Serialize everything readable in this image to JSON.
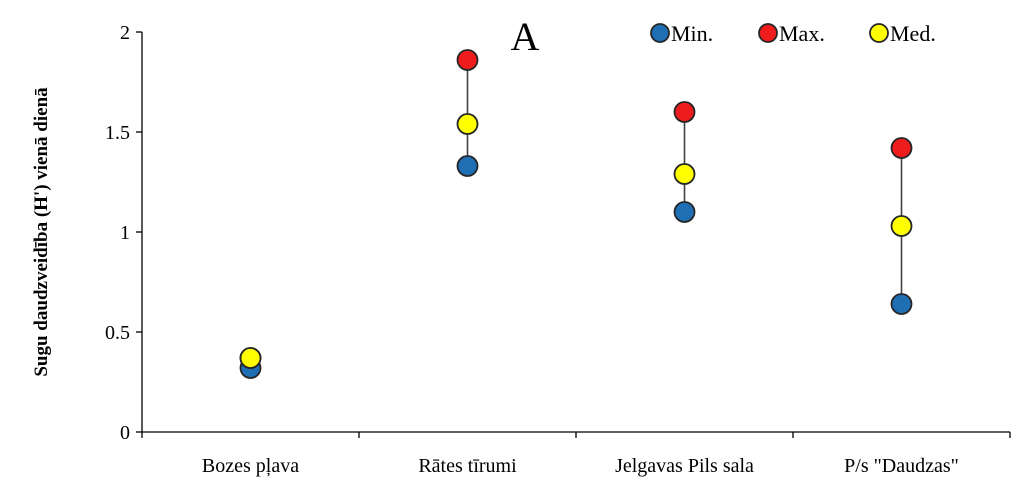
{
  "chart_data": {
    "type": "scatter",
    "panel_label": "A",
    "ylabel": "Sugu daudzveidība (H') vienā dienā",
    "xlabel": "",
    "ylim": [
      0,
      2
    ],
    "yticks": [
      0,
      0.5,
      1,
      1.5,
      2
    ],
    "ytick_labels": [
      "0",
      "0.5",
      "1",
      "1.5",
      "2"
    ],
    "categories": [
      "Bozes pļava",
      "Rātes tīrumi",
      "Jelgavas Pils sala",
      "P/s \"Daudzas\""
    ],
    "series": [
      {
        "name": "Min.",
        "color": "#1f6fb5",
        "values": [
          0.32,
          1.33,
          1.1,
          0.64
        ]
      },
      {
        "name": "Max.",
        "color": "#ee1c1c",
        "values": [
          0.37,
          1.86,
          1.6,
          1.42
        ]
      },
      {
        "name": "Med.",
        "color": "#ffff00",
        "values": [
          0.37,
          1.54,
          1.29,
          1.03
        ]
      }
    ],
    "range_lines": true,
    "grid": false,
    "legend_position": "top-right"
  }
}
